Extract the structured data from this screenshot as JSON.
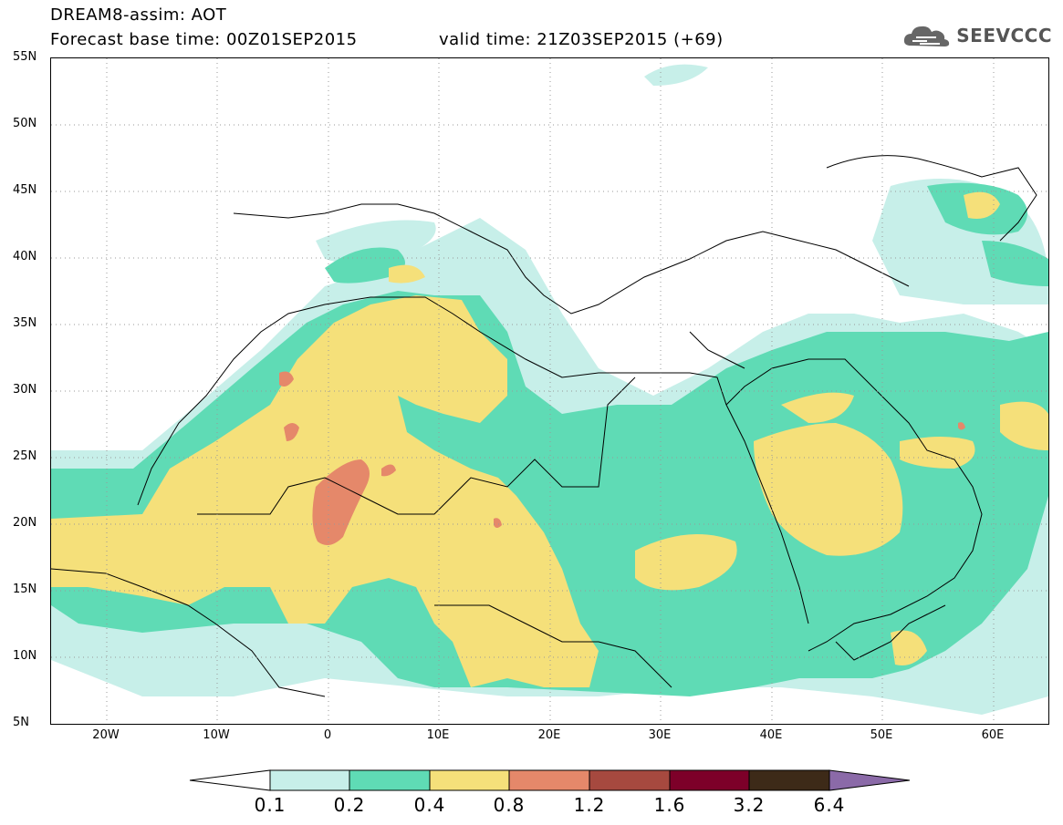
{
  "header": {
    "title_line1": "DREAM8-assim: AOT",
    "title_line2": "Forecast base time: 00Z01SEP2015",
    "valid_time": "valid time: 21Z03SEP2015 (+69)",
    "logo_text": "SEEVCCC",
    "logo_icon": "cloud-logo-icon"
  },
  "map": {
    "lat_labels": [
      "55N",
      "50N",
      "45N",
      "40N",
      "35N",
      "30N",
      "25N",
      "20N",
      "15N",
      "10N",
      "5N"
    ],
    "lon_labels": [
      "20W",
      "10W",
      "0",
      "10E",
      "20E",
      "30E",
      "40E",
      "50E",
      "60E"
    ],
    "lat_range": [
      5,
      55
    ],
    "lon_range": [
      -25,
      65
    ],
    "grid": "dotted"
  },
  "legend": {
    "labels": [
      "0.1",
      "0.2",
      "0.4",
      "0.8",
      "1.2",
      "1.6",
      "3.2",
      "6.4"
    ],
    "colors": [
      "#ffffff",
      "#c7efe9",
      "#5fdbb5",
      "#f5e07a",
      "#e5886a",
      "#a6493f",
      "#7d0029",
      "#3d2a18",
      "#8b6aa8"
    ]
  }
}
